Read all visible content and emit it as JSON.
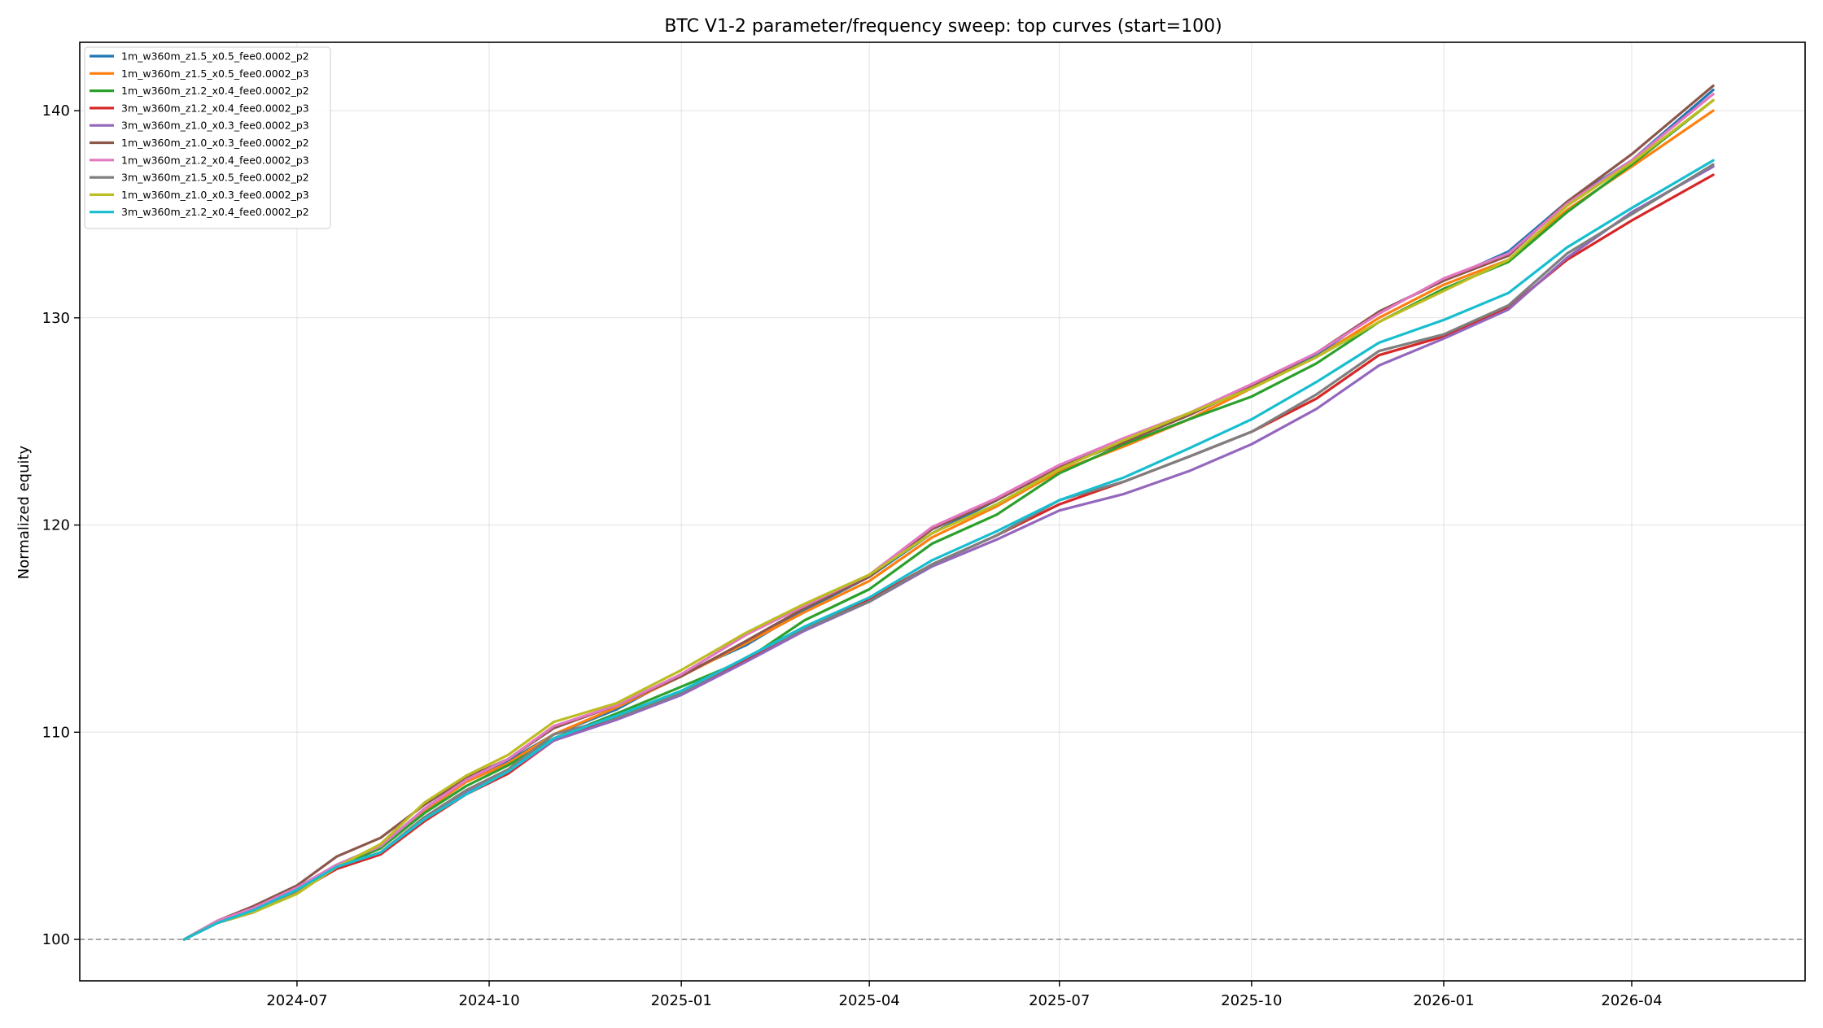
{
  "chart_data": {
    "type": "line",
    "title": "BTC V1-2 parameter/frequency sweep: top curves (start=100)",
    "xlabel": "",
    "ylabel": "Normalized equity",
    "x_ticks": [
      "2024-07",
      "2024-10",
      "2025-01",
      "2025-04",
      "2025-07",
      "2025-10",
      "2026-01",
      "2026-04"
    ],
    "y_ticks": [
      100,
      110,
      120,
      130,
      140
    ],
    "ylim": [
      98,
      143.3
    ],
    "xlim": [
      "2024-03-19",
      "2026-06-23"
    ],
    "grid": true,
    "legend_position": "top-left",
    "baseline": 100,
    "x": [
      "2024-05-08",
      "2024-05-24",
      "2024-06-10",
      "2024-07-01",
      "2024-07-20",
      "2024-08-10",
      "2024-08-31",
      "2024-09-20",
      "2024-10-10",
      "2024-11-01",
      "2024-12-01",
      "2025-01-01",
      "2025-02-01",
      "2025-03-01",
      "2025-04-01",
      "2025-05-01",
      "2025-06-01",
      "2025-07-01",
      "2025-08-01",
      "2025-09-01",
      "2025-10-01",
      "2025-11-01",
      "2025-12-01",
      "2026-01-01",
      "2026-02-01",
      "2026-03-01",
      "2026-04-01",
      "2026-05-10"
    ],
    "series": [
      {
        "name": "1m_w360m_z1.5_x0.5_fee0.0002_p2",
        "color": "#1f77b4",
        "values": [
          100,
          100.9,
          101.5,
          102.5,
          103.6,
          104.5,
          106.3,
          107.7,
          108.6,
          109.9,
          111.1,
          112.8,
          114.2,
          115.9,
          117.5,
          119.6,
          121.2,
          122.8,
          124.1,
          125.4,
          126.7,
          128.2,
          130.3,
          131.8,
          133.2,
          135.6,
          137.6,
          141.0
        ]
      },
      {
        "name": "1m_w360m_z1.5_x0.5_fee0.0002_p3",
        "color": "#ff7f0e",
        "values": [
          100,
          100.9,
          101.5,
          102.4,
          103.5,
          104.4,
          106.2,
          107.6,
          108.5,
          109.9,
          111.2,
          112.7,
          114.3,
          115.8,
          117.3,
          119.4,
          120.9,
          122.6,
          123.8,
          125.1,
          126.6,
          128.1,
          130.0,
          131.6,
          132.8,
          135.2,
          137.3,
          140.0
        ]
      },
      {
        "name": "1m_w360m_z1.2_x0.4_fee0.0002_p2",
        "color": "#2ca02c",
        "values": [
          100,
          100.9,
          101.4,
          102.4,
          103.5,
          104.4,
          106.1,
          107.4,
          108.4,
          109.7,
          110.9,
          112.2,
          113.5,
          115.4,
          116.9,
          119.1,
          120.5,
          122.5,
          123.9,
          125.1,
          126.2,
          127.8,
          129.8,
          131.4,
          132.7,
          135.1,
          137.4,
          140.5
        ]
      },
      {
        "name": "3m_w360m_z1.2_x0.4_fee0.0002_p3",
        "color": "#d62728",
        "values": [
          100,
          100.8,
          101.3,
          102.3,
          103.4,
          104.1,
          105.7,
          107.0,
          108.0,
          109.6,
          110.7,
          111.9,
          113.5,
          115.0,
          116.4,
          118.1,
          119.5,
          121.0,
          122.1,
          123.3,
          124.5,
          126.1,
          128.2,
          129.1,
          130.5,
          132.8,
          134.7,
          136.9
        ]
      },
      {
        "name": "3m_w360m_z1.0_x0.3_fee0.0002_p3",
        "color": "#9467bd",
        "values": [
          100,
          100.8,
          101.3,
          102.3,
          103.5,
          104.2,
          105.8,
          107.1,
          108.1,
          109.6,
          110.6,
          111.8,
          113.4,
          114.9,
          116.3,
          118.0,
          119.3,
          120.7,
          121.5,
          122.6,
          123.9,
          125.6,
          127.7,
          129.0,
          130.4,
          132.9,
          135.1,
          137.3
        ]
      },
      {
        "name": "1m_w360m_z1.0_x0.3_fee0.0002_p2",
        "color": "#8c564b",
        "values": [
          100,
          100.9,
          101.6,
          102.6,
          104.0,
          104.9,
          106.5,
          107.8,
          108.7,
          110.2,
          111.3,
          112.7,
          114.4,
          116.0,
          117.5,
          119.8,
          121.2,
          122.8,
          124.0,
          125.3,
          126.7,
          128.3,
          130.3,
          131.8,
          133.0,
          135.6,
          137.9,
          141.2
        ]
      },
      {
        "name": "1m_w360m_z1.2_x0.4_fee0.0002_p3",
        "color": "#e377c2",
        "values": [
          100,
          100.9,
          101.5,
          102.5,
          103.6,
          104.5,
          106.3,
          107.7,
          108.7,
          110.3,
          111.3,
          112.8,
          114.7,
          116.1,
          117.6,
          119.9,
          121.3,
          122.9,
          124.2,
          125.4,
          126.8,
          128.3,
          130.2,
          131.9,
          133.1,
          135.5,
          137.6,
          140.8
        ]
      },
      {
        "name": "3m_w360m_z1.5_x0.5_fee0.0002_p2",
        "color": "#7f7f7f",
        "values": [
          100,
          100.8,
          101.4,
          102.3,
          103.5,
          104.2,
          105.9,
          107.2,
          108.2,
          109.9,
          110.7,
          111.9,
          113.6,
          115.0,
          116.3,
          118.1,
          119.5,
          121.2,
          122.1,
          123.3,
          124.5,
          126.3,
          128.4,
          129.2,
          130.6,
          133.1,
          135.0,
          137.4
        ]
      },
      {
        "name": "1m_w360m_z1.0_x0.3_fee0.0002_p3",
        "color": "#bcbd22",
        "values": [
          100,
          100.8,
          101.3,
          102.2,
          103.5,
          104.6,
          106.6,
          107.9,
          108.9,
          110.5,
          111.4,
          113.0,
          114.8,
          116.2,
          117.6,
          119.6,
          121.0,
          122.7,
          124.1,
          125.4,
          126.6,
          128.1,
          129.8,
          131.3,
          132.8,
          135.4,
          137.5,
          140.5
        ]
      },
      {
        "name": "3m_w360m_z1.2_x0.4_fee0.0002_p2",
        "color": "#17becf",
        "values": [
          100,
          100.8,
          101.4,
          102.4,
          103.5,
          104.2,
          105.8,
          107.0,
          108.1,
          109.7,
          110.8,
          112.0,
          113.6,
          115.1,
          116.5,
          118.3,
          119.7,
          121.2,
          122.3,
          123.7,
          125.1,
          126.9,
          128.8,
          129.9,
          131.2,
          133.4,
          135.3,
          137.6
        ]
      }
    ]
  }
}
